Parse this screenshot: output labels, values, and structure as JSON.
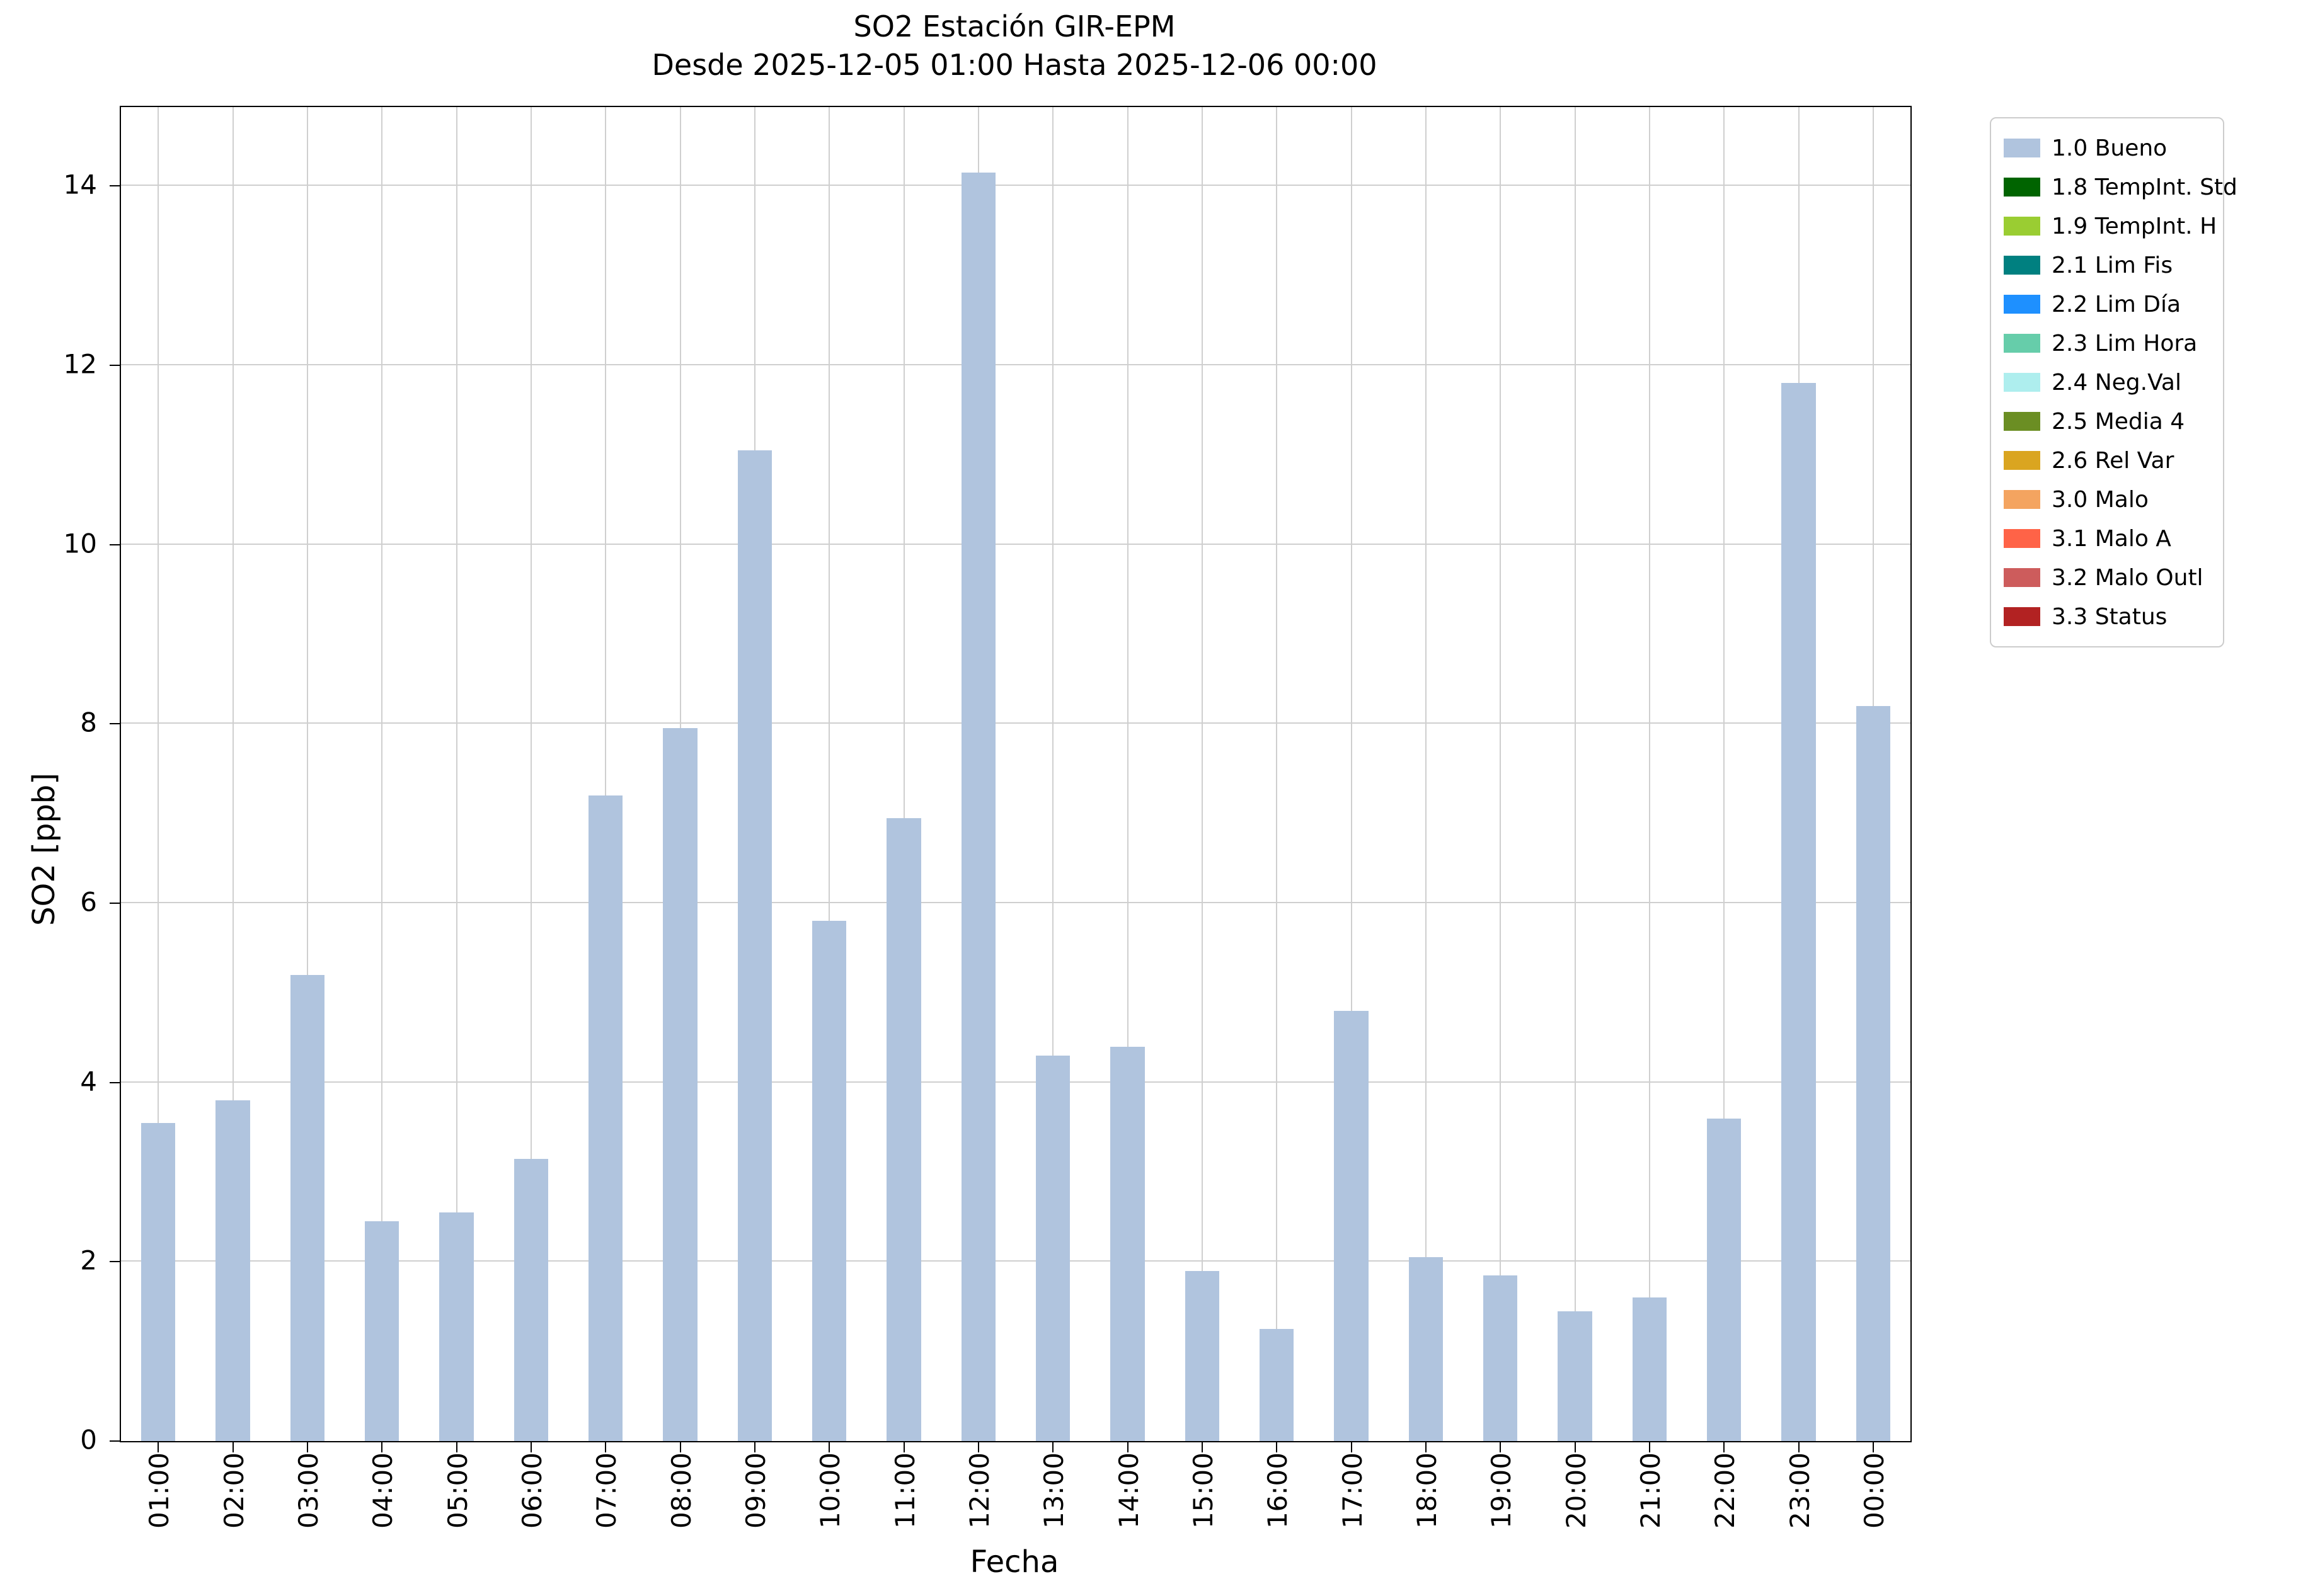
{
  "chart_data": {
    "type": "bar",
    "title": "SO2 Estación GIR-EPM",
    "subtitle": "Desde 2025-12-05 01:00 Hasta 2025-12-06 00:00",
    "xlabel": "Fecha",
    "ylabel": "SO2 [ppb]",
    "ylim": [
      0,
      14.88
    ],
    "yticks": [
      0,
      2,
      4,
      6,
      8,
      10,
      12,
      14
    ],
    "grid": true,
    "legend_position": "upper right, outside axes",
    "bar_color": "#b0c4de",
    "categories": [
      "01:00",
      "02:00",
      "03:00",
      "04:00",
      "05:00",
      "06:00",
      "07:00",
      "08:00",
      "09:00",
      "10:00",
      "11:00",
      "12:00",
      "13:00",
      "14:00",
      "15:00",
      "16:00",
      "17:00",
      "18:00",
      "19:00",
      "20:00",
      "21:00",
      "22:00",
      "23:00",
      "00:00"
    ],
    "values": [
      3.55,
      3.8,
      5.2,
      2.45,
      2.55,
      3.15,
      7.2,
      7.95,
      11.05,
      5.8,
      6.95,
      14.15,
      4.3,
      4.4,
      1.9,
      1.25,
      4.8,
      2.05,
      1.85,
      1.45,
      1.6,
      3.6,
      11.8,
      8.2
    ],
    "series_name": "1.0 Bueno",
    "legend": [
      {
        "label": "1.0 Bueno",
        "color": "#b0c4de"
      },
      {
        "label": "1.8 TempInt. Std",
        "color": "#006400"
      },
      {
        "label": "1.9 TempInt. H",
        "color": "#9acd32"
      },
      {
        "label": "2.1 Lim Fis",
        "color": "#008080"
      },
      {
        "label": "2.2 Lim Día",
        "color": "#1e90ff"
      },
      {
        "label": "2.3 Lim Hora",
        "color": "#66cdaa"
      },
      {
        "label": "2.4 Neg.Val",
        "color": "#aeeeee"
      },
      {
        "label": "2.5 Media 4",
        "color": "#6b8e23"
      },
      {
        "label": "2.6 Rel Var",
        "color": "#daa520"
      },
      {
        "label": "3.0 Malo",
        "color": "#f4a460"
      },
      {
        "label": "3.1 Malo A",
        "color": "#ff6347"
      },
      {
        "label": "3.2 Malo Outl",
        "color": "#cd5c5c"
      },
      {
        "label": "3.3 Status",
        "color": "#b22222"
      }
    ]
  }
}
